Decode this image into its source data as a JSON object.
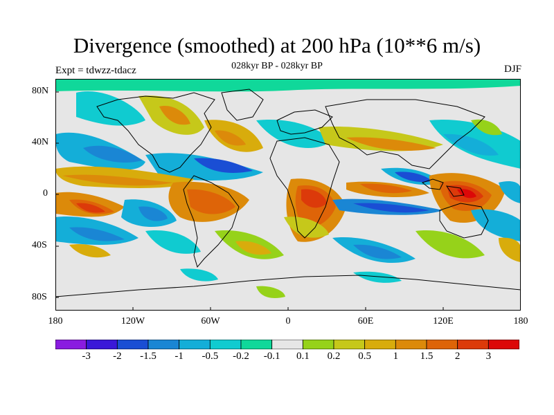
{
  "title": "Divergence (smoothed) at 200 hPa (10**6 m/s)",
  "subtitle": "028kyr BP - 028kyr BP",
  "experiment": "Expt = tdwzz-tdacz",
  "season": "DJF",
  "lat_ticks": [
    "80N",
    "40N",
    "0",
    "40S",
    "80S"
  ],
  "lon_ticks": [
    "180",
    "120W",
    "60W",
    "0",
    "60E",
    "120E",
    "180"
  ],
  "colorbar": {
    "labels": [
      "-3",
      "-2",
      "-1.5",
      "-1",
      "-0.5",
      "-0.2",
      "-0.1",
      "0.1",
      "0.2",
      "0.5",
      "1",
      "1.5",
      "2",
      "3"
    ],
    "colors": [
      "#8a1ce0",
      "#3a18d8",
      "#1a4ed4",
      "#1a86d4",
      "#14aed8",
      "#10cbd0",
      "#10d89a",
      "#e6e6e6",
      "#96d21a",
      "#c6c81a",
      "#d8ac0c",
      "#dc8a0a",
      "#de6408",
      "#dc3a0a",
      "#dc0808"
    ]
  }
}
